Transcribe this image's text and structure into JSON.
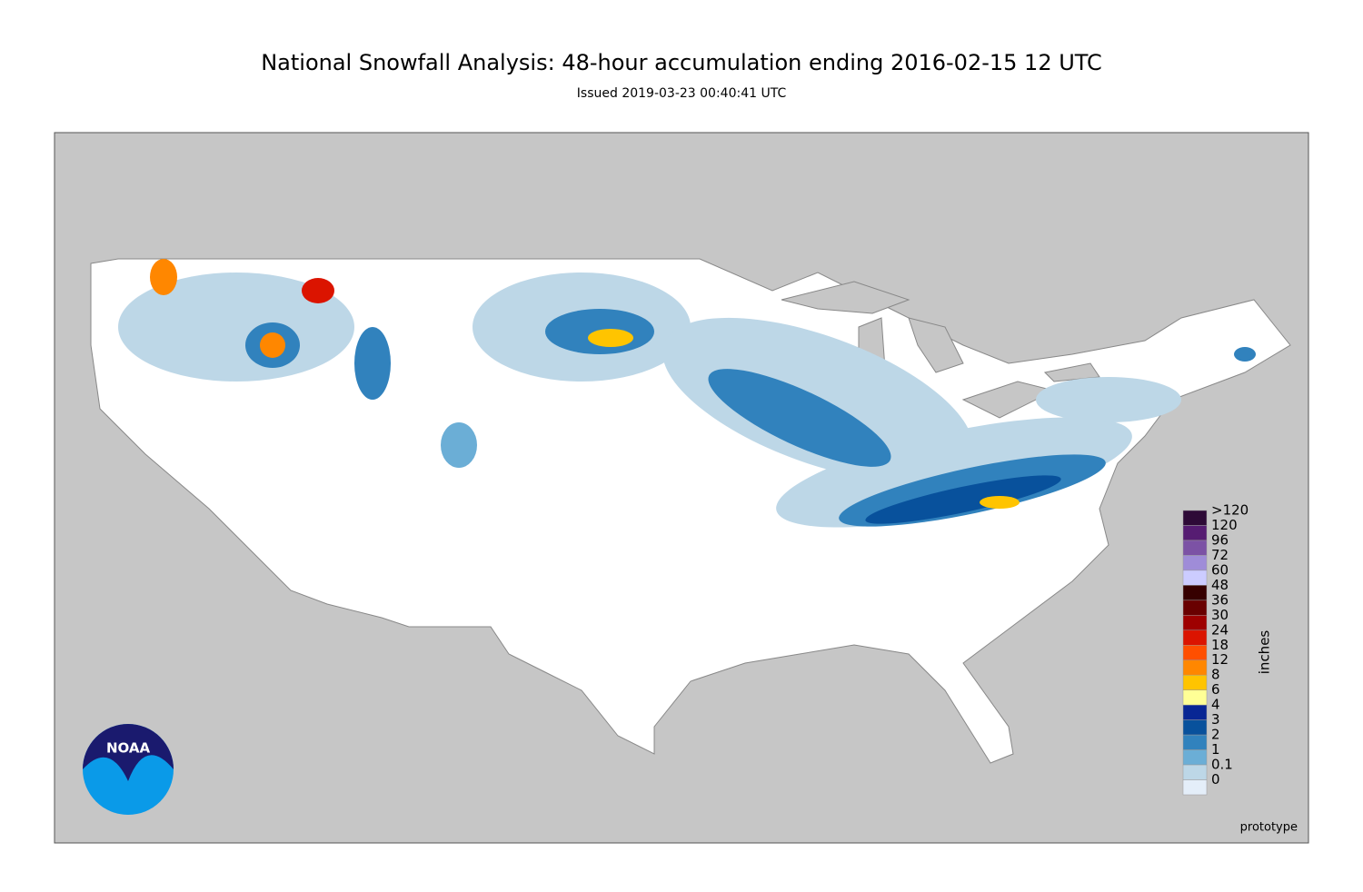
{
  "header": {
    "title": "National Snowfall Analysis: 48-hour accumulation ending 2016-02-15 12 UTC",
    "subtitle": "Issued 2019-03-23 00:40:41 UTC"
  },
  "legend": {
    "title": "inches",
    "items": [
      {
        "label": ">120",
        "color": "#2e0a37"
      },
      {
        "label": "120",
        "color": "#561c72"
      },
      {
        "label": "96",
        "color": "#7c52a5"
      },
      {
        "label": "72",
        "color": "#9f8cd8"
      },
      {
        "label": "60",
        "color": "#ccccff"
      },
      {
        "label": "48",
        "color": "#360000"
      },
      {
        "label": "36",
        "color": "#690000"
      },
      {
        "label": "30",
        "color": "#9e0000"
      },
      {
        "label": "24",
        "color": "#db1400"
      },
      {
        "label": "18",
        "color": "#ff4f00"
      },
      {
        "label": "12",
        "color": "#ff8700"
      },
      {
        "label": "8",
        "color": "#ffc400"
      },
      {
        "label": "6",
        "color": "#ffff96"
      },
      {
        "label": "4",
        "color": "#082694"
      },
      {
        "label": "3",
        "color": "#08519c"
      },
      {
        "label": "2",
        "color": "#3182bd"
      },
      {
        "label": "1",
        "color": "#6baed6"
      },
      {
        "label": "0.1",
        "color": "#bdd7e7"
      },
      {
        "label": "0",
        "color": "#e4eef9"
      }
    ]
  },
  "logo": {
    "text": "NOAA"
  },
  "footer": {
    "note": "prototype"
  }
}
